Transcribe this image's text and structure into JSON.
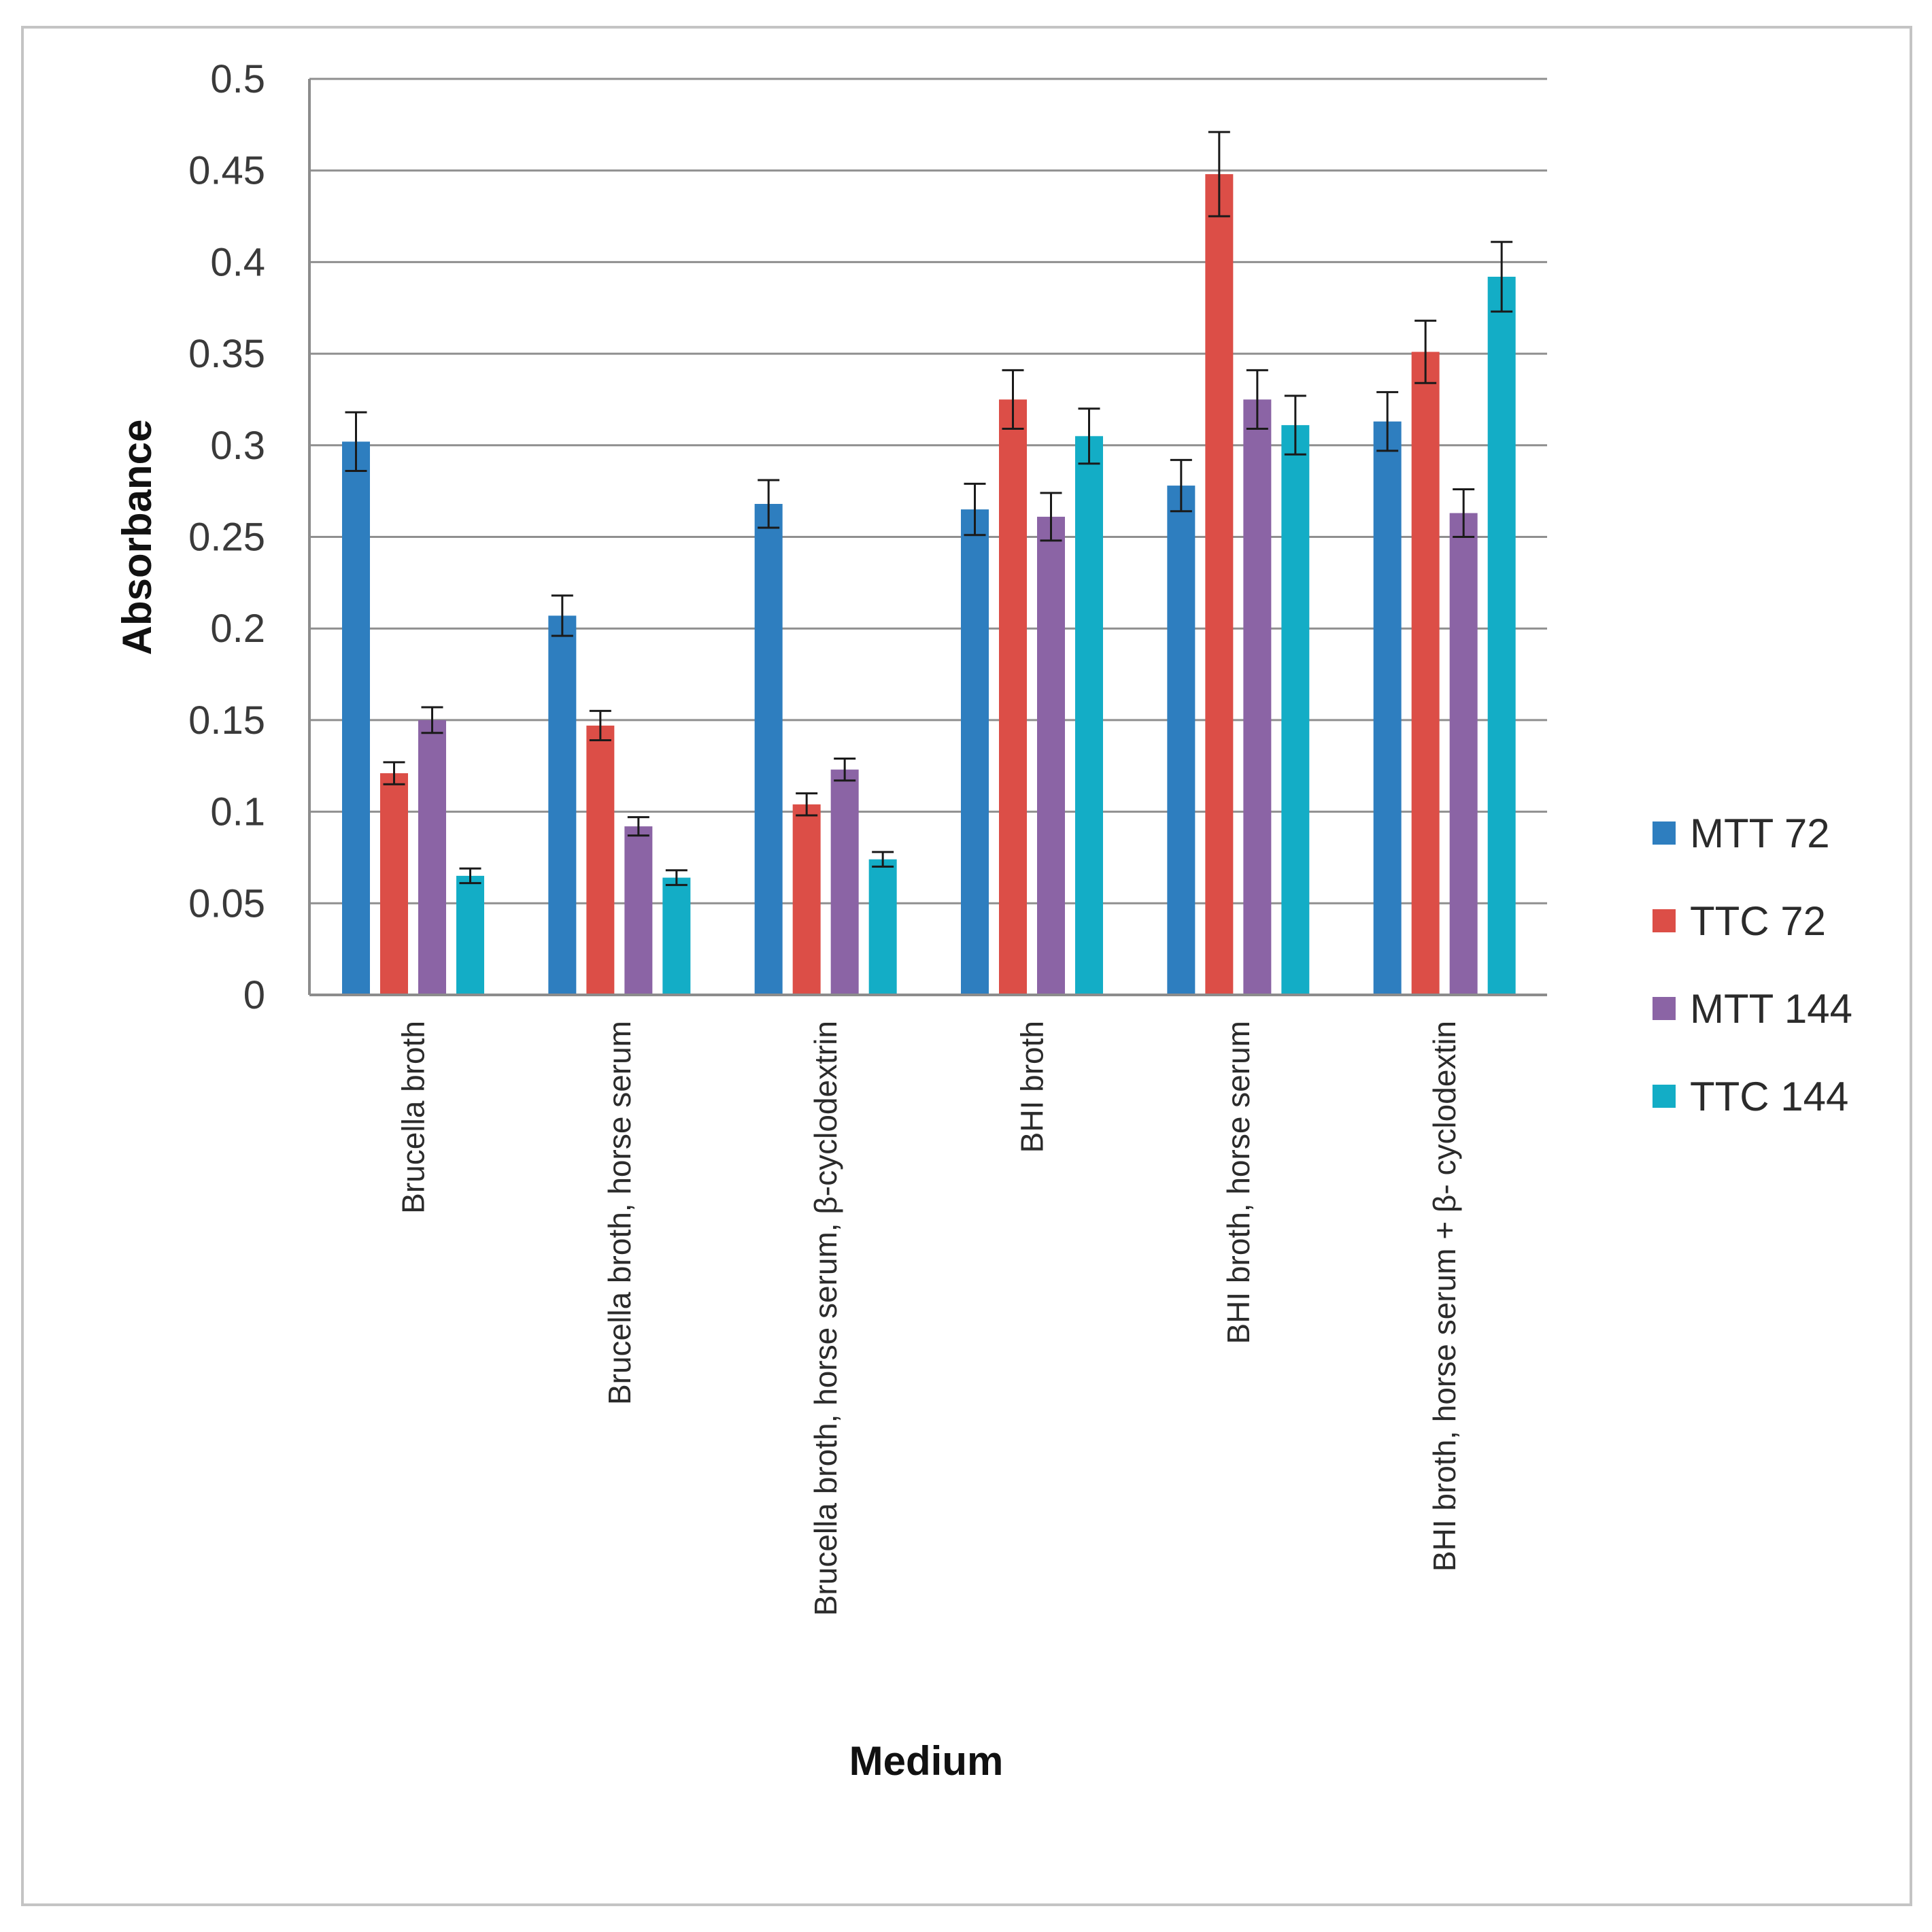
{
  "chart_data": {
    "type": "bar",
    "title": "",
    "xlabel": "Medium",
    "ylabel": "Absorbance",
    "ylim": [
      0,
      0.5
    ],
    "yticks": [
      "0",
      "0.05",
      "0.1",
      "0.15",
      "0.2",
      "0.25",
      "0.3",
      "0.35",
      "0.4",
      "0.45",
      "0.5"
    ],
    "grid": true,
    "legend_position": "right",
    "categories": [
      "Brucella broth",
      "Brucella broth, horse serum",
      "Brucella broth, horse serum,  β-cyclodextrin",
      "BHI broth",
      "BHI broth, horse serum",
      "BHI broth, horse serum + β- cyclodextin"
    ],
    "series": [
      {
        "name": "MTT 72",
        "color": "#2e7ebf",
        "values": [
          0.302,
          0.207,
          0.268,
          0.265,
          0.278,
          0.313
        ],
        "errors": [
          0.016,
          0.011,
          0.013,
          0.014,
          0.014,
          0.016
        ]
      },
      {
        "name": "TTC 72",
        "color": "#dc4e47",
        "values": [
          0.121,
          0.147,
          0.104,
          0.325,
          0.448,
          0.351
        ],
        "errors": [
          0.006,
          0.008,
          0.006,
          0.016,
          0.023,
          0.017
        ]
      },
      {
        "name": "MTT 144",
        "color": "#8b64a5",
        "values": [
          0.15,
          0.092,
          0.123,
          0.261,
          0.325,
          0.263
        ],
        "errors": [
          0.007,
          0.005,
          0.006,
          0.013,
          0.016,
          0.013
        ]
      },
      {
        "name": "TTC 144",
        "color": "#13adc6",
        "values": [
          0.065,
          0.064,
          0.074,
          0.305,
          0.311,
          0.392
        ],
        "errors": [
          0.004,
          0.004,
          0.004,
          0.015,
          0.016,
          0.019
        ]
      }
    ]
  }
}
